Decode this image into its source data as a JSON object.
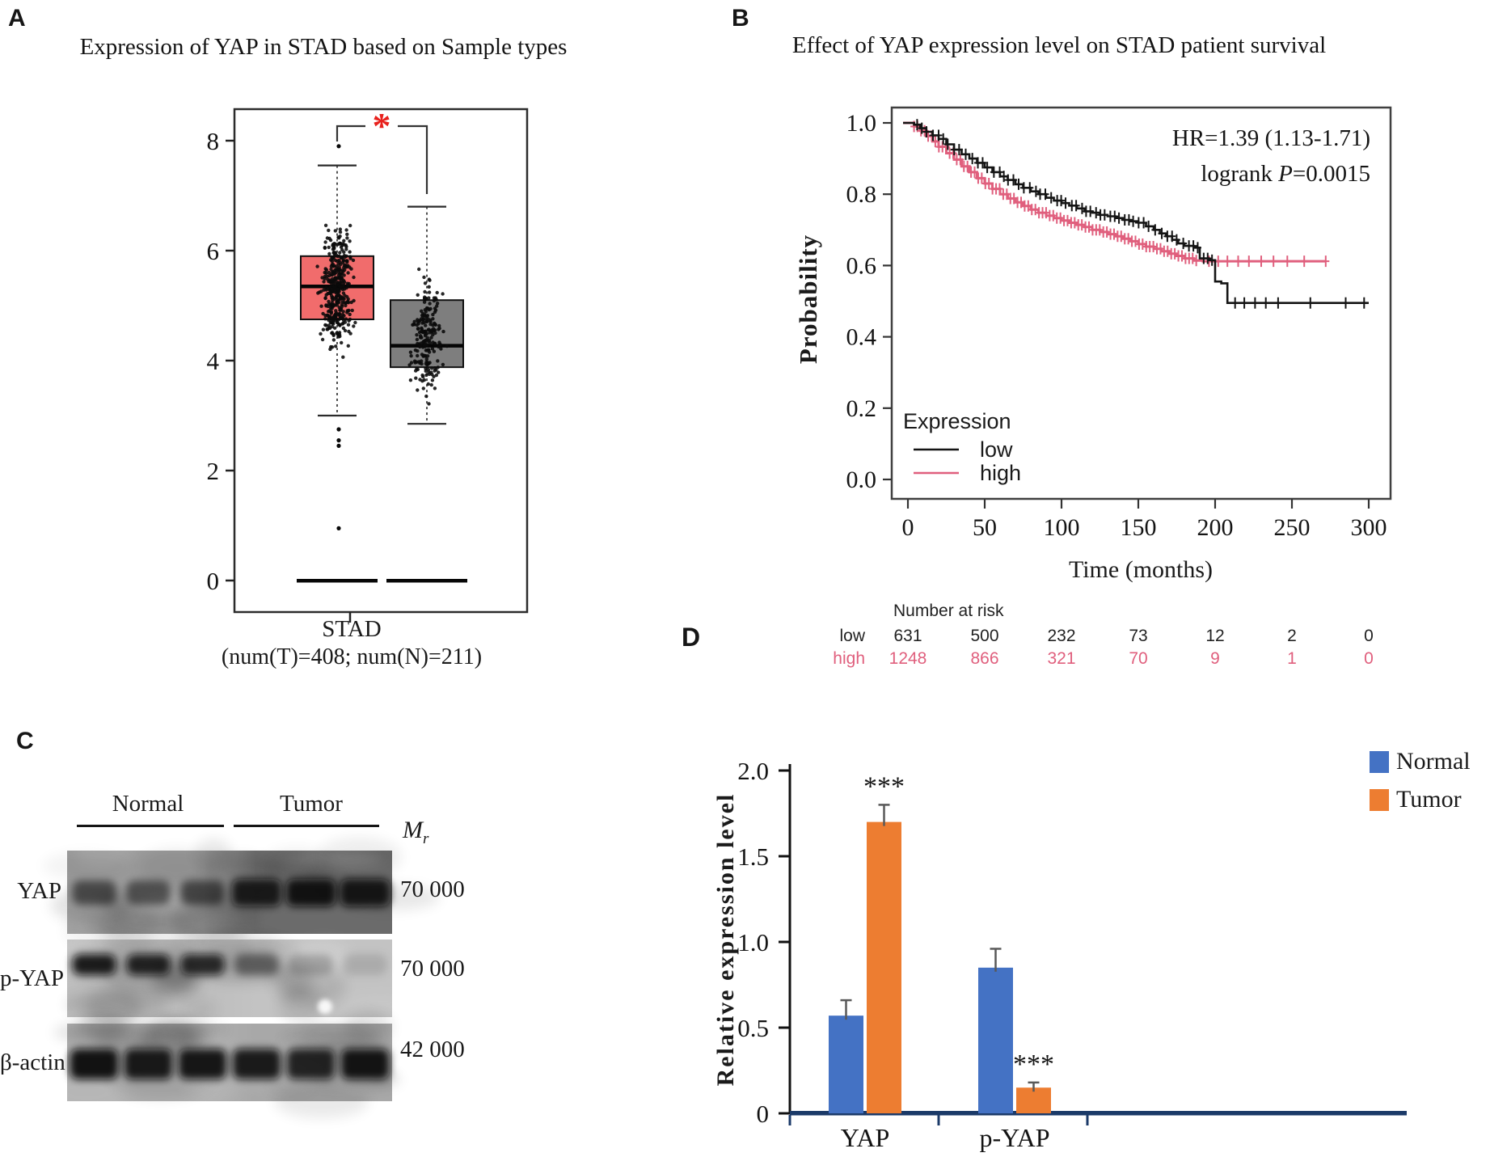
{
  "figure": {
    "panels": {
      "a": {
        "label": "A",
        "title": "Expression of YAP in STAD based on Sample types",
        "significance": "*",
        "x_label_line1": "STAD",
        "x_label_line2": "(num(T)=408; num(N)=211)"
      },
      "b": {
        "label": "B",
        "title": "Effect of YAP expression level on STAD patient survival",
        "hr_line": "HR=1.39 (1.13-1.71)",
        "logrank_prefix": "logrank ",
        "logrank_p": "P",
        "logrank_value": "=0.0015",
        "ylabel": "Probability",
        "xlabel": "Time (months)",
        "legend_title": "Expression",
        "risk_header": "Number at risk"
      },
      "c": {
        "label": "C",
        "groups": [
          "Normal",
          "Tumor"
        ],
        "mw_label_main": "M",
        "mw_label_sub": "r",
        "rows": [
          {
            "protein": "YAP",
            "mw": "70 000"
          },
          {
            "protein": "p-YAP",
            "mw": "70 000"
          },
          {
            "protein": "β-actin",
            "mw": "42 000"
          }
        ]
      },
      "d": {
        "label": "D",
        "ylabel": "Relative expression level",
        "legend": [
          "Normal",
          "Tumor"
        ],
        "significance": "***"
      }
    }
  },
  "chart_data": [
    {
      "id": "a-boxplot",
      "type": "box",
      "title": "Expression of YAP in STAD based on Sample types",
      "x_category": "STAD",
      "x_sublabel": "(num(T)=408; num(N)=211)",
      "ylim": [
        0,
        8.6
      ],
      "yticks": [
        0,
        2,
        4,
        6,
        8
      ],
      "significance": "*",
      "significance_color": "#e8211d",
      "groups": [
        {
          "name": "Tumor",
          "n": 408,
          "color": "#f16c6c",
          "median": 5.35,
          "q1": 4.75,
          "q3": 5.9,
          "whisker_low": 3.0,
          "whisker_high": 7.55,
          "outliers": [
            7.9,
            2.75,
            2.55,
            2.45,
            0.95
          ],
          "zero_cluster": true,
          "points_mean": 5.3,
          "points_sd": 1.15,
          "points_n": 400
        },
        {
          "name": "Normal",
          "n": 211,
          "color": "#7e7e7e",
          "median": 4.27,
          "q1": 3.88,
          "q3": 5.1,
          "whisker_low": 2.85,
          "whisker_high": 6.8,
          "outliers": [],
          "zero_cluster": true,
          "points_mean": 4.45,
          "points_sd": 1.05,
          "points_n": 210
        }
      ]
    },
    {
      "id": "b-km-survival",
      "type": "line",
      "title": "Effect of YAP expression level on STAD patient survival",
      "xlabel": "Time (months)",
      "ylabel": "Probability",
      "xlim": [
        0,
        310
      ],
      "ylim": [
        0,
        1
      ],
      "xticks": [
        0,
        50,
        100,
        150,
        200,
        250,
        300
      ],
      "yticks": [
        1,
        0.8,
        0.6,
        0.4,
        0.2,
        0
      ],
      "ytick_labels": [
        "1.0",
        "0.8",
        "0.6",
        "0.4",
        "0.2",
        "0.0"
      ],
      "annotation": [
        "HR=1.39 (1.13-1.71)",
        "logrank P=0.0015"
      ],
      "legend_title": "Expression",
      "series": [
        {
          "name": "high",
          "color": "#e05f7d",
          "censor_start": 4,
          "censor_end": 190,
          "censor_step": 2.2,
          "censor_tail": [
            196,
            202,
            208,
            215,
            222,
            230,
            238,
            247,
            258,
            272
          ],
          "steps": [
            [
              0,
              1.0
            ],
            [
              4,
              0.99
            ],
            [
              8,
              0.978
            ],
            [
              12,
              0.963
            ],
            [
              16,
              0.948
            ],
            [
              20,
              0.933
            ],
            [
              25,
              0.915
            ],
            [
              30,
              0.897
            ],
            [
              35,
              0.878
            ],
            [
              40,
              0.862
            ],
            [
              45,
              0.845
            ],
            [
              50,
              0.83
            ],
            [
              55,
              0.815
            ],
            [
              60,
              0.8
            ],
            [
              65,
              0.788
            ],
            [
              70,
              0.777
            ],
            [
              75,
              0.767
            ],
            [
              80,
              0.757
            ],
            [
              85,
              0.748
            ],
            [
              90,
              0.74
            ],
            [
              95,
              0.733
            ],
            [
              100,
              0.726
            ],
            [
              105,
              0.72
            ],
            [
              110,
              0.714
            ],
            [
              115,
              0.708
            ],
            [
              120,
              0.7
            ],
            [
              125,
              0.694
            ],
            [
              130,
              0.688
            ],
            [
              135,
              0.682
            ],
            [
              140,
              0.675
            ],
            [
              145,
              0.668
            ],
            [
              150,
              0.66
            ],
            [
              155,
              0.653
            ],
            [
              160,
              0.647
            ],
            [
              165,
              0.64
            ],
            [
              170,
              0.633
            ],
            [
              175,
              0.627
            ],
            [
              180,
              0.62
            ],
            [
              186,
              0.614
            ],
            [
              192,
              0.612
            ],
            [
              272,
              0.612
            ]
          ]
        },
        {
          "name": "low",
          "color": "#141414",
          "censor_start": 6,
          "censor_end": 200,
          "censor_step": 2.6,
          "censor_tail": [
            213,
            219,
            226,
            233,
            241,
            262,
            285,
            297
          ],
          "steps": [
            [
              0,
              1.0
            ],
            [
              4,
              0.995
            ],
            [
              8,
              0.985
            ],
            [
              12,
              0.975
            ],
            [
              16,
              0.965
            ],
            [
              20,
              0.955
            ],
            [
              25,
              0.94
            ],
            [
              30,
              0.925
            ],
            [
              35,
              0.912
            ],
            [
              40,
              0.9
            ],
            [
              45,
              0.888
            ],
            [
              50,
              0.875
            ],
            [
              55,
              0.862
            ],
            [
              60,
              0.85
            ],
            [
              65,
              0.84
            ],
            [
              70,
              0.828
            ],
            [
              75,
              0.818
            ],
            [
              80,
              0.808
            ],
            [
              85,
              0.8
            ],
            [
              90,
              0.79
            ],
            [
              95,
              0.782
            ],
            [
              100,
              0.775
            ],
            [
              105,
              0.768
            ],
            [
              110,
              0.76
            ],
            [
              115,
              0.752
            ],
            [
              120,
              0.748
            ],
            [
              125,
              0.742
            ],
            [
              130,
              0.738
            ],
            [
              135,
              0.733
            ],
            [
              140,
              0.728
            ],
            [
              145,
              0.724
            ],
            [
              150,
              0.72
            ],
            [
              155,
              0.71
            ],
            [
              160,
              0.7
            ],
            [
              164,
              0.69
            ],
            [
              168,
              0.682
            ],
            [
              172,
              0.672
            ],
            [
              176,
              0.662
            ],
            [
              180,
              0.655
            ],
            [
              186,
              0.65
            ],
            [
              190,
              0.62
            ],
            [
              196,
              0.615
            ],
            [
              200,
              0.555
            ],
            [
              204,
              0.55
            ],
            [
              208,
              0.495
            ],
            [
              300,
              0.495
            ]
          ]
        }
      ],
      "risk_table": {
        "header": "Number at risk",
        "times": [
          0,
          50,
          100,
          150,
          200,
          250,
          300
        ],
        "rows": [
          {
            "name": "low",
            "color": "#222222",
            "values": [
              631,
              500,
              232,
              73,
              12,
              2,
              0
            ]
          },
          {
            "name": "high",
            "color": "#e05f7d",
            "values": [
              1248,
              866,
              321,
              70,
              9,
              1,
              0
            ]
          }
        ]
      }
    },
    {
      "id": "c-western-blots",
      "type": "table",
      "groups": [
        "Normal",
        "Tumor"
      ],
      "lanes_per_group": 3,
      "rows": [
        {
          "protein": "YAP",
          "mw": "70 000",
          "bg_left": "#9c9c9c",
          "bg_right": "#6b6b6b",
          "bands": [
            0.52,
            0.5,
            0.55,
            0.9,
            0.96,
            0.92
          ]
        },
        {
          "protein": "p-YAP",
          "mw": "70 000",
          "bg_left": "#bdbdbd",
          "bg_right": "#c3c3c3",
          "bands": [
            0.92,
            0.88,
            0.84,
            0.42,
            0.2,
            0.12
          ]
        },
        {
          "protein": "β-actin",
          "mw": "42 000",
          "bg_left": "#b0b0b0",
          "bg_right": "#a8a8a8",
          "bands": [
            0.97,
            0.93,
            0.95,
            0.92,
            0.88,
            0.96
          ]
        }
      ]
    },
    {
      "id": "d-expression-bars",
      "type": "bar",
      "categories": [
        "YAP",
        "p-YAP"
      ],
      "series": [
        {
          "name": "Normal",
          "color": "#4472c4",
          "values": [
            0.57,
            0.85
          ],
          "errors": [
            0.09,
            0.11
          ]
        },
        {
          "name": "Tumor",
          "color": "#ed7d31",
          "values": [
            1.7,
            0.15
          ],
          "errors": [
            0.1,
            0.03
          ]
        }
      ],
      "significance": [
        {
          "category": "YAP",
          "series": "Tumor",
          "label": "***"
        },
        {
          "category": "p-YAP",
          "series": "Tumor",
          "label": "***"
        }
      ],
      "ylabel": "Relative expression level",
      "ylim": [
        0,
        2.0
      ],
      "yticks": [
        0,
        0.5,
        1.0,
        1.5,
        2.0
      ],
      "ytick_labels": [
        "0",
        "0.5",
        "1.0",
        "1.5",
        "2.0"
      ],
      "axis_color": "#1b3a68",
      "error_color": "#595959"
    }
  ]
}
